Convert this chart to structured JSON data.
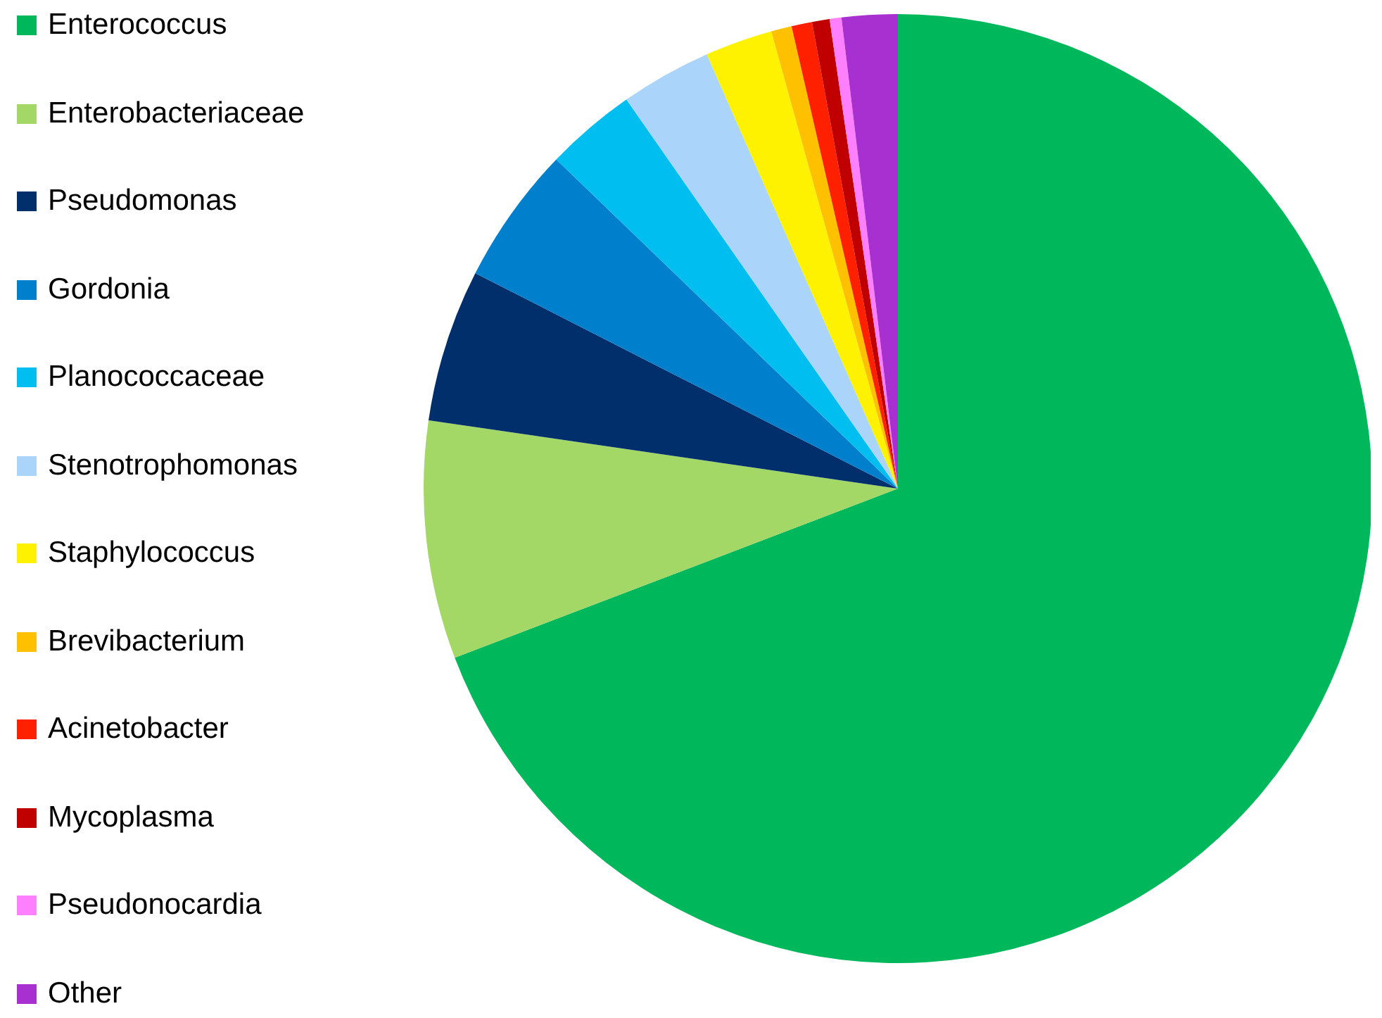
{
  "chart_data": {
    "type": "pie",
    "categories": [
      "Enterococcus",
      "Enterobacteriaceae",
      "Pseudomonas",
      "Gordonia",
      "Planococcaceae",
      "Stenotrophomonas",
      "Staphylococcus",
      "Brevibacterium",
      "Acinetobacter",
      "Mycoplasma",
      "Pseudonocardia",
      "Other"
    ],
    "values": [
      69.2,
      8.1,
      5.2,
      4.7,
      3.1,
      3.1,
      2.3,
      0.7,
      0.7,
      0.6,
      0.4,
      1.9
    ],
    "colors": [
      "#00b85c",
      "#a3d766",
      "#002f6c",
      "#0080cc",
      "#00bff0",
      "#aad4fa",
      "#fff200",
      "#ffc000",
      "#ff2000",
      "#c00000",
      "#ff80ff",
      "#a830d0"
    ],
    "legend": "left"
  }
}
